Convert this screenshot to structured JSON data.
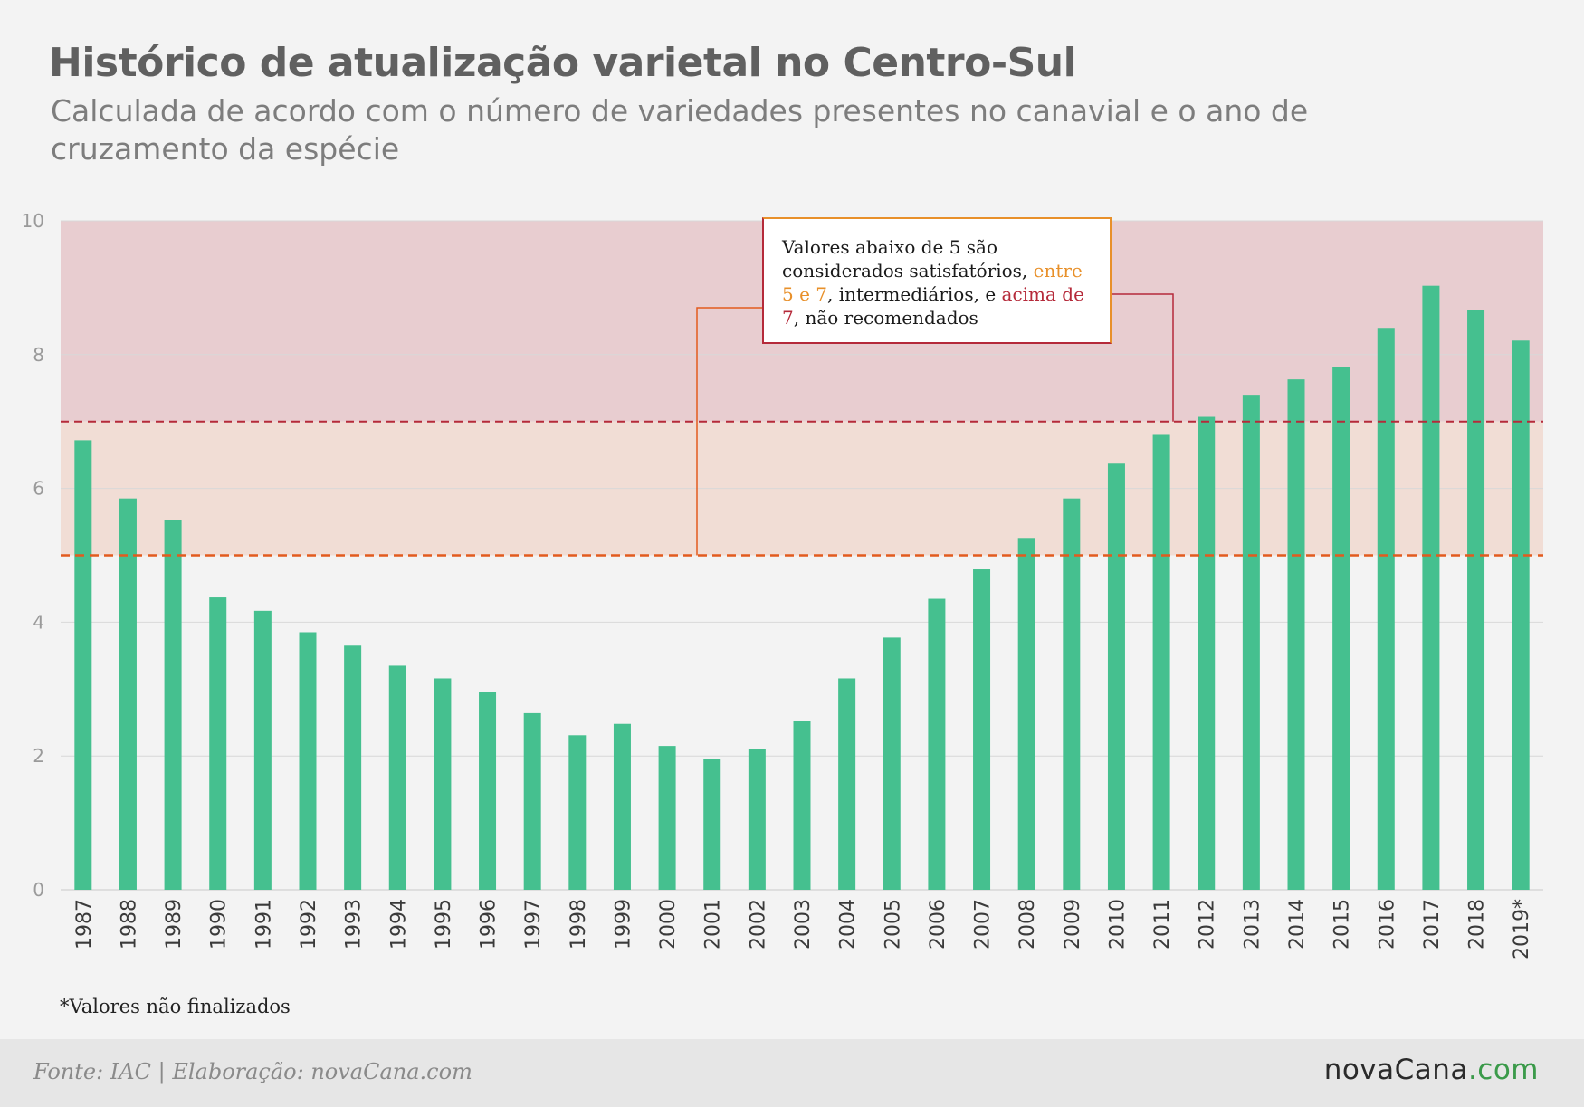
{
  "title": "Histórico de atualização varietal no Centro-Sul",
  "subtitle": "Calculada de acordo com o número de variedades presentes no canavial e o ano de cruzamento da espécie",
  "callout": {
    "part1": "Valores abaixo de 5 são considerados satisfatórios, ",
    "part2": "entre 5 e 7",
    "part3": ", intermediários, e ",
    "part4": "acima de 7",
    "part5": ", não recomendados"
  },
  "note": "*Valores não finalizados",
  "footer": {
    "source": "Fonte: IAC | Elaboração: novaCana.com",
    "brand_main": "novaCana",
    "brand_dot": ".com"
  },
  "colors": {
    "bar": "#45c08f",
    "zone_high": "#e8cdd0",
    "zone_mid": "#f1ddd5",
    "line_7": "#b52a3a",
    "line_5": "#e25b1e",
    "accent_orange": "#e8902a",
    "accent_red": "#b52a3a"
  },
  "chart_data": {
    "type": "bar",
    "categories": [
      "1987",
      "1988",
      "1989",
      "1990",
      "1991",
      "1992",
      "1993",
      "1994",
      "1995",
      "1996",
      "1997",
      "1998",
      "1999",
      "2000",
      "2001",
      "2002",
      "2003",
      "2004",
      "2005",
      "2006",
      "2007",
      "2008",
      "2009",
      "2010",
      "2011",
      "2012",
      "2013",
      "2014",
      "2015",
      "2016",
      "2017",
      "2018",
      "2019*"
    ],
    "values": [
      6.72,
      5.85,
      5.53,
      4.37,
      4.17,
      3.85,
      3.65,
      3.35,
      3.16,
      2.95,
      2.64,
      2.31,
      2.48,
      2.15,
      1.95,
      2.1,
      2.53,
      3.16,
      3.77,
      4.35,
      4.79,
      5.26,
      5.85,
      6.37,
      6.8,
      7.07,
      7.4,
      7.63,
      7.82,
      8.4,
      9.03,
      8.67,
      8.21
    ],
    "ylim": [
      0,
      10
    ],
    "yticks": [
      0,
      2,
      4,
      6,
      8,
      10
    ],
    "grid": true,
    "thresholds": [
      5,
      7
    ],
    "zones": [
      {
        "from": 5,
        "to": 7,
        "meaning": "intermediários"
      },
      {
        "from": 7,
        "to": 10,
        "meaning": "não recomendados"
      }
    ]
  }
}
